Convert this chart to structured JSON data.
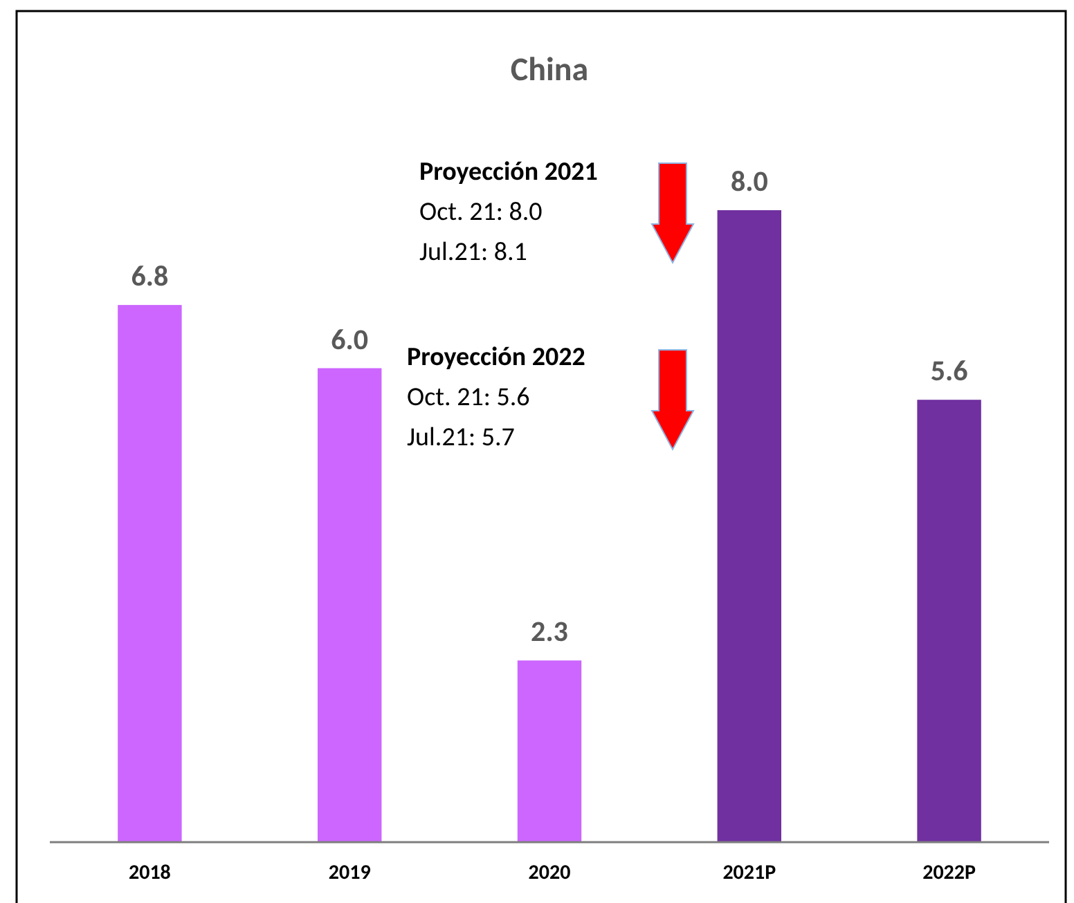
{
  "chart_data": {
    "type": "bar",
    "title": "China",
    "categories": [
      "2018",
      "2019",
      "2020",
      "2021P",
      "2022P"
    ],
    "values": [
      6.8,
      6.0,
      2.3,
      8.0,
      5.6
    ],
    "colors": [
      "#cc66ff",
      "#cc66ff",
      "#cc66ff",
      "#7030a0",
      "#7030a0"
    ],
    "value_labels": [
      "6.8",
      "6.0",
      "2.3",
      "8.0",
      "5.6"
    ],
    "annotations": [
      "Proyección 2021\nOct. 21: 8.0\nJul.21: 8.1",
      "Proyección 2022\nOct. 21: 5.6\nJul.21: 5.7"
    ]
  }
}
